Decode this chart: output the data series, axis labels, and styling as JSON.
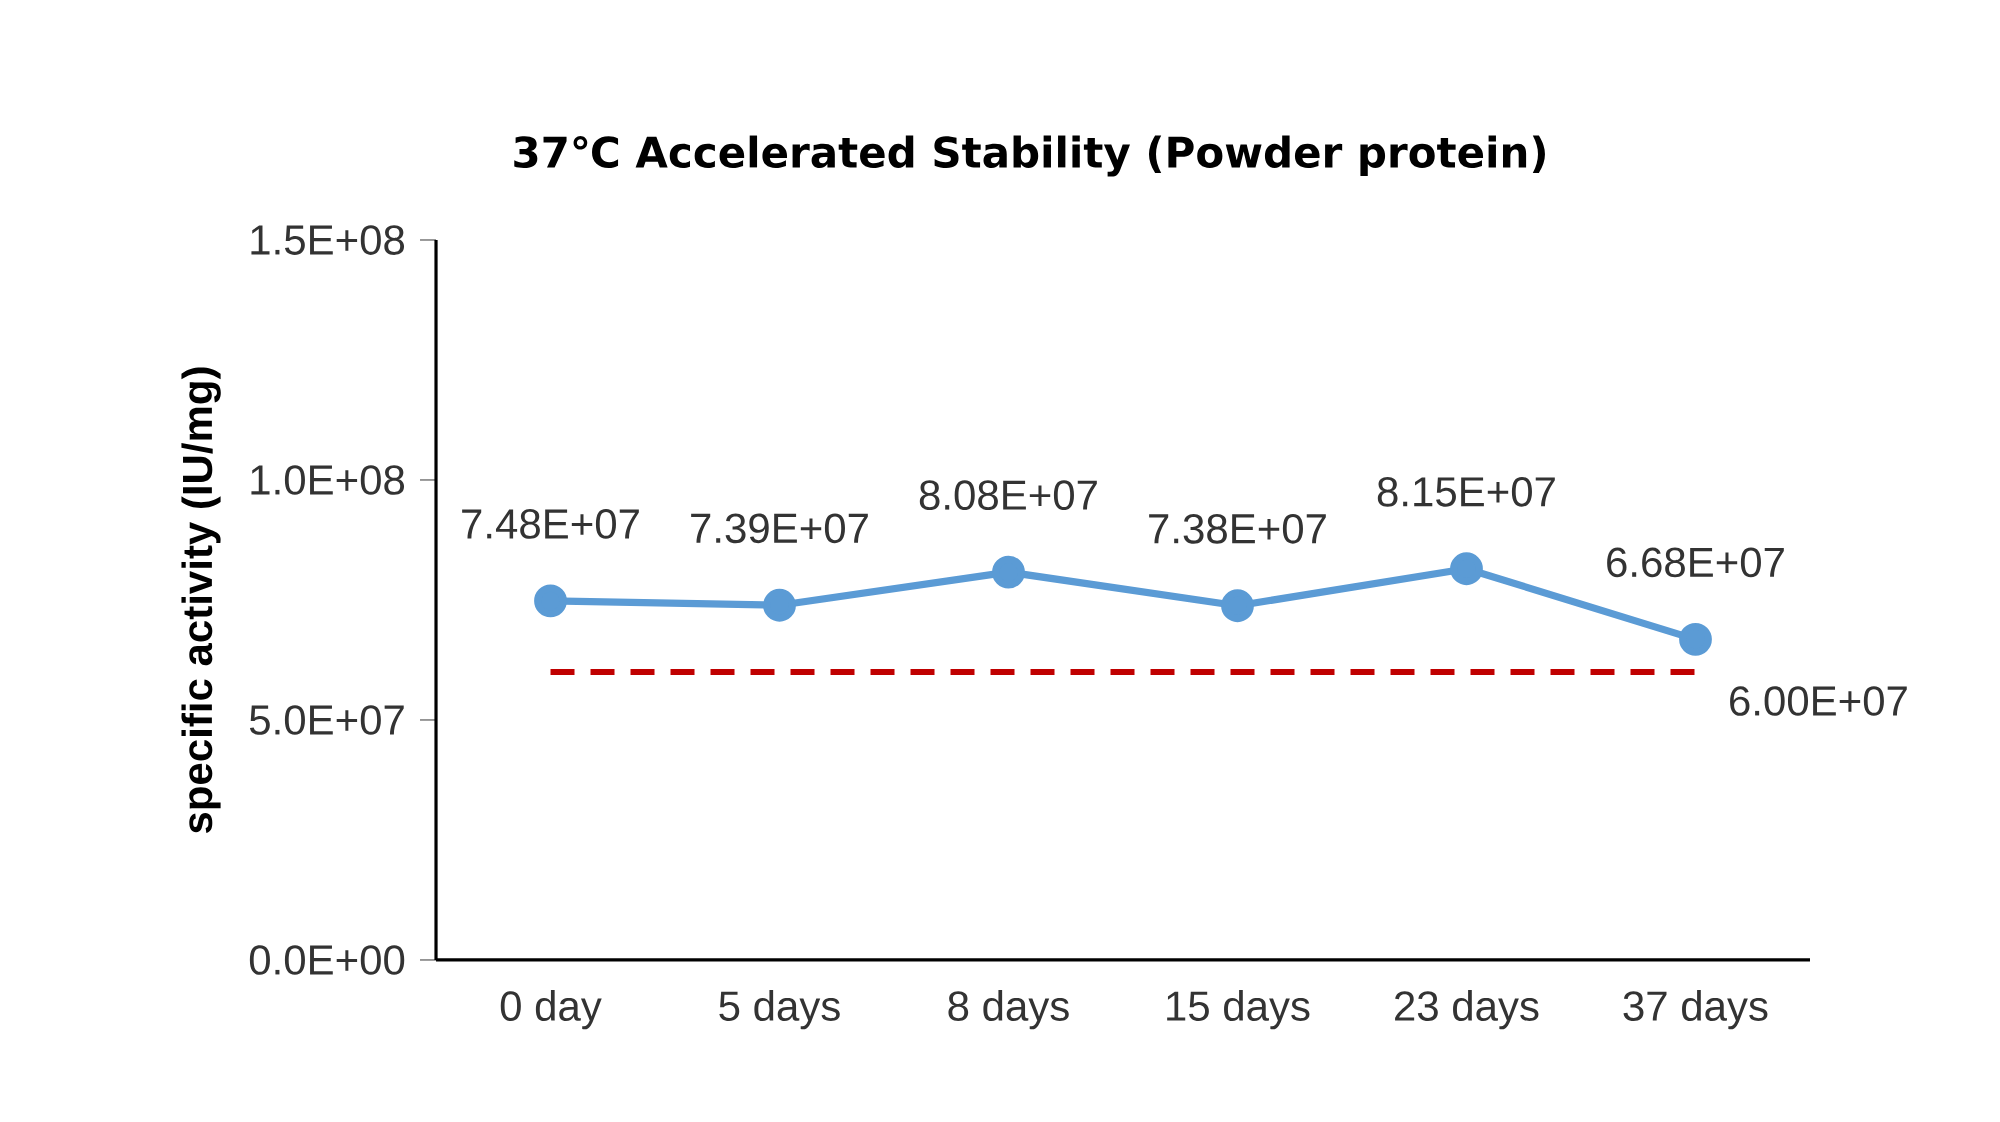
{
  "chart_data": {
    "type": "line",
    "title": "37℃ Accelerated Stability (Powder protein)",
    "ylabel": "specific activity (IU/mg)",
    "categories": [
      "0 day",
      "5 days",
      "8 days",
      "15 days",
      "23 days",
      "37 days"
    ],
    "series": [
      {
        "color": "#5b9bd5",
        "values": [
          74800000,
          73900000,
          80800000,
          73800000,
          81500000,
          66800000
        ],
        "value_labels": [
          "7.48E+07",
          "7.39E+07",
          "8.08E+07",
          "7.38E+07",
          "8.15E+07",
          "6.68E+07"
        ]
      }
    ],
    "ylim": [
      0,
      150000000
    ],
    "yticks": [
      {
        "value": 0,
        "label": "0.0E+00"
      },
      {
        "value": 50000000,
        "label": "5.0E+07"
      },
      {
        "value": 100000000,
        "label": "1.0E+08"
      },
      {
        "value": 150000000,
        "label": "1.5E+08"
      }
    ],
    "ref_lines": [
      {
        "axis": "y",
        "value": 60000000,
        "label": "6.00E+07",
        "color": "#c00000",
        "line_style": "dashed"
      }
    ],
    "marker": "circle",
    "line_style": "solid"
  }
}
